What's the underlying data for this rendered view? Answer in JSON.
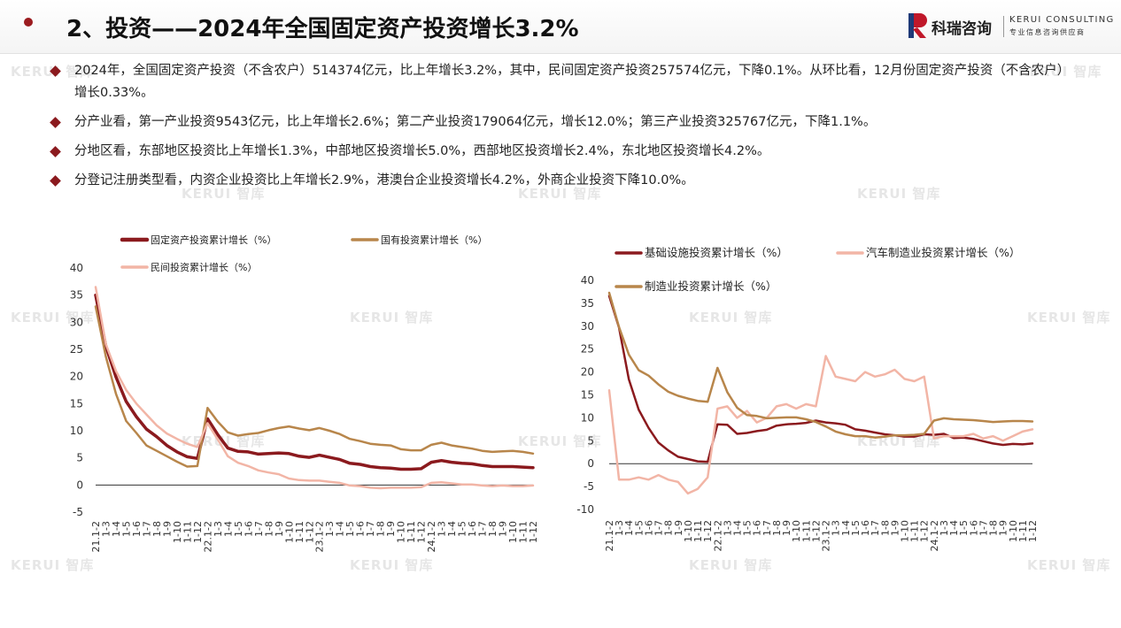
{
  "header": {
    "title": "2、投资——2024年全国固定资产投资增长3.2%",
    "logo_cn": "科瑞咨询",
    "logo_en": "KERUI CONSULTING",
    "logo_sub": "专业信息咨询供应商"
  },
  "watermark": "KERUI 智库",
  "bullets": [
    {
      "text": "2024年，全国固定资产投资（不含农户）514374亿元，比上年增长3.2%，其中，民间固定资产投资257574亿元，下降0.1%。从环比看，12月份固定资产投资（不含农户）增长0.33%。"
    },
    {
      "text": "分产业看，第一产业投资9543亿元，比上年增长2.6%；第二产业投资179064亿元，增长12.0%；第三产业投资325767亿元，下降1.1%。"
    },
    {
      "text": "分地区看，东部地区投资比上年增长1.3%，中部地区投资增长5.0%，西部地区投资增长2.4%，东北地区投资增长4.2%。"
    },
    {
      "text": "分登记注册类型看，内资企业投资比上年增长2.9%，港澳台企业投资增长4.2%，外商企业投资下降10.0%。"
    }
  ],
  "chart_data": [
    {
      "type": "line",
      "ylim": [
        -5,
        40
      ],
      "yticks": [
        -5,
        0,
        5,
        10,
        15,
        20,
        25,
        30,
        35,
        40
      ],
      "legend_placement": "top",
      "categories": [
        "21.1-2",
        "21.1-3",
        "1-4",
        "1-5",
        "1-6",
        "1-7",
        "1-8",
        "1-9",
        "1-10",
        "1-11",
        "1-12",
        "22.1-2",
        "22.1-3",
        "1-4",
        "1-5",
        "1-6",
        "1-7",
        "1-8",
        "1-9",
        "1-10",
        "1-11",
        "1-12",
        "23.1-2",
        "23.1-3",
        "1-4",
        "1-5",
        "1-6",
        "1-7",
        "1-8",
        "1-9",
        "1-10",
        "1-11",
        "1-12",
        "24.1-2",
        "24.1-3",
        "1-4",
        "1-5",
        "1-6",
        "1-7",
        "1-8",
        "1-9",
        "1-10",
        "1-11",
        "1-12"
      ],
      "tick_labels": [
        "21.1-2",
        "1-3",
        "1-4",
        "1-5",
        "1-6",
        "1-7",
        "1-8",
        "1-9",
        "1-10",
        "1-11",
        "1-12",
        "22.1-2",
        "1-3",
        "1-4",
        "1-5",
        "1-6",
        "1-7",
        "1-8",
        "1-9",
        "1-10",
        "1-11",
        "1-12",
        "23.1-2",
        "1-3",
        "1-4",
        "1-5",
        "1-6",
        "1-7",
        "1-8",
        "1-9",
        "1-10",
        "1-11",
        "1-12",
        "24.1-2",
        "1-3",
        "1-4",
        "1-5",
        "1-6",
        "1-7",
        "1-8",
        "1-9",
        "1-10",
        "1-11",
        "1-12"
      ],
      "series": [
        {
          "name": "固定资产投资累计增长（%）",
          "color": "#8b1a1e",
          "width": 3.5,
          "values": [
            35.0,
            25.6,
            19.9,
            15.4,
            12.6,
            10.3,
            8.9,
            7.3,
            6.1,
            5.2,
            4.9,
            12.2,
            9.3,
            6.8,
            6.2,
            6.1,
            5.7,
            5.8,
            5.9,
            5.8,
            5.3,
            5.1,
            5.5,
            5.1,
            4.7,
            4.0,
            3.8,
            3.4,
            3.2,
            3.1,
            2.9,
            2.9,
            3.0,
            4.2,
            4.5,
            4.2,
            4.0,
            3.9,
            3.6,
            3.4,
            3.4,
            3.4,
            3.3,
            3.2
          ]
        },
        {
          "name": "国有投资累计增长（%）",
          "color": "#b8864b",
          "width": 2.5,
          "values": [
            32.9,
            23.7,
            16.8,
            11.8,
            9.6,
            7.3,
            6.3,
            5.3,
            4.3,
            3.4,
            3.5,
            14.2,
            11.7,
            9.7,
            9.1,
            9.4,
            9.6,
            10.1,
            10.5,
            10.8,
            10.4,
            10.1,
            10.5,
            10.0,
            9.4,
            8.5,
            8.1,
            7.6,
            7.4,
            7.3,
            6.6,
            6.4,
            6.4,
            7.4,
            7.8,
            7.3,
            7.0,
            6.7,
            6.3,
            6.1,
            6.2,
            6.3,
            6.1,
            5.8
          ]
        },
        {
          "name": "民间投资累计增长（%）",
          "color": "#f2b5a6",
          "width": 2.5,
          "values": [
            36.5,
            26.0,
            21.0,
            17.5,
            15.0,
            13.0,
            11.0,
            9.5,
            8.5,
            7.6,
            7.0,
            11.4,
            8.4,
            5.3,
            4.1,
            3.5,
            2.7,
            2.3,
            2.0,
            1.2,
            0.9,
            0.8,
            0.8,
            0.6,
            0.4,
            -0.1,
            -0.2,
            -0.5,
            -0.6,
            -0.5,
            -0.5,
            -0.5,
            -0.4,
            0.4,
            0.5,
            0.3,
            0.1,
            0.1,
            -0.1,
            -0.2,
            -0.1,
            -0.2,
            -0.2,
            -0.1
          ]
        }
      ]
    },
    {
      "type": "line",
      "ylim": [
        -10,
        40
      ],
      "yticks": [
        -10,
        -5,
        0,
        5,
        10,
        15,
        20,
        25,
        30,
        35,
        40
      ],
      "legend_placement": "top",
      "categories": [
        "21.1-2",
        "21.1-3",
        "1-4",
        "1-5",
        "1-6",
        "1-7",
        "1-8",
        "1-9",
        "1-10",
        "1-11",
        "1-12",
        "22.1-2",
        "22.1-3",
        "1-4",
        "1-5",
        "1-6",
        "1-7",
        "1-8",
        "1-9",
        "1-10",
        "1-11",
        "1-12",
        "23.1-2",
        "23.1-3",
        "1-4",
        "1-5",
        "1-6",
        "1-7",
        "1-8",
        "1-9",
        "1-10",
        "1-11",
        "1-12",
        "24.1-2",
        "24.1-3",
        "1-4",
        "1-5",
        "1-6",
        "1-7",
        "1-8",
        "1-9",
        "1-10",
        "1-11",
        "1-12"
      ],
      "tick_labels": [
        "21.1-2",
        "1-3",
        "1-4",
        "1-5",
        "1-6",
        "1-7",
        "1-8",
        "1-9",
        "1-10",
        "1-11",
        "1-12",
        "22.1-2",
        "1-3",
        "1-4",
        "1-5",
        "1-6",
        "1-7",
        "1-8",
        "1-9",
        "1-10",
        "1-11",
        "1-12",
        "23.1-2",
        "1-3",
        "1-4",
        "1-5",
        "1-6",
        "1-7",
        "1-8",
        "1-9",
        "1-10",
        "1-11",
        "1-12",
        "24.1-2",
        "1-3",
        "1-4",
        "1-5",
        "1-6",
        "1-7",
        "1-8",
        "1-9",
        "1-10",
        "1-11",
        "1-12"
      ],
      "series": [
        {
          "name": "基础设施投资累计增长（%）",
          "color": "#8b1a1e",
          "width": 2.5,
          "values": [
            36.6,
            29.7,
            18.4,
            11.8,
            7.8,
            4.6,
            2.9,
            1.5,
            1.0,
            0.5,
            0.4,
            8.6,
            8.5,
            6.5,
            6.7,
            7.1,
            7.4,
            8.3,
            8.6,
            8.7,
            8.9,
            9.4,
            9.0,
            8.8,
            8.5,
            7.5,
            7.2,
            6.8,
            6.4,
            6.2,
            5.9,
            5.9,
            6.4,
            6.3,
            6.5,
            5.6,
            5.7,
            5.4,
            4.9,
            4.4,
            4.1,
            4.3,
            4.2,
            4.4
          ]
        },
        {
          "name": "汽车制造业投资累计增长（%）",
          "color": "#f2b5a6",
          "width": 2.5,
          "values": [
            16.0,
            -3.5,
            -3.5,
            -3.0,
            -3.5,
            -2.5,
            -3.5,
            -4.0,
            -6.5,
            -5.5,
            -3.0,
            12.0,
            12.5,
            10.0,
            11.5,
            9.0,
            10.0,
            12.5,
            13.0,
            12.0,
            13.0,
            12.5,
            23.5,
            19.0,
            18.5,
            18.0,
            20.0,
            19.0,
            19.5,
            20.5,
            18.5,
            18.0,
            19.0,
            5.5,
            6.0,
            6.0,
            6.0,
            6.5,
            5.5,
            6.0,
            5.0,
            6.0,
            7.0,
            7.5
          ]
        },
        {
          "name": "制造业投资累计增长（%）",
          "color": "#b8864b",
          "width": 2.5,
          "values": [
            37.3,
            29.8,
            23.8,
            20.4,
            19.2,
            17.3,
            15.7,
            14.8,
            14.2,
            13.7,
            13.5,
            20.9,
            15.6,
            12.2,
            10.6,
            10.4,
            9.9,
            10.0,
            10.1,
            10.1,
            9.7,
            9.1,
            8.1,
            7.0,
            6.4,
            6.0,
            6.0,
            5.7,
            5.9,
            6.2,
            6.2,
            6.3,
            6.5,
            9.4,
            9.9,
            9.7,
            9.6,
            9.5,
            9.3,
            9.1,
            9.2,
            9.3,
            9.3,
            9.2
          ]
        }
      ]
    }
  ]
}
